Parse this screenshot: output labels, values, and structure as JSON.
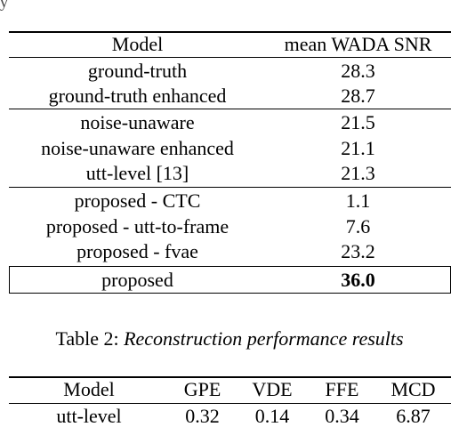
{
  "table1": {
    "headers": [
      "Model",
      "mean WADA SNR"
    ],
    "groups": [
      [
        [
          "ground-truth",
          "28.3"
        ],
        [
          "ground-truth enhanced",
          "28.7"
        ]
      ],
      [
        [
          "noise-unaware",
          "21.5"
        ],
        [
          "noise-unaware enhanced",
          "21.1"
        ],
        [
          "utt-level [13]",
          "21.3"
        ]
      ],
      [
        [
          "proposed - CTC",
          "1.1"
        ],
        [
          "proposed - utt-to-frame",
          "7.6"
        ],
        [
          "proposed - fvae",
          "23.2"
        ]
      ],
      [
        [
          "proposed",
          "36.0"
        ]
      ]
    ]
  },
  "caption2": {
    "prefix": "Table 2: ",
    "text": "Reconstruction performance results"
  },
  "table2": {
    "headers": [
      "Model",
      "GPE",
      "VDE",
      "FFE",
      "MCD"
    ],
    "rows": [
      [
        "utt-level",
        "0.32",
        "0.14",
        "0.34",
        "6.87"
      ]
    ]
  }
}
